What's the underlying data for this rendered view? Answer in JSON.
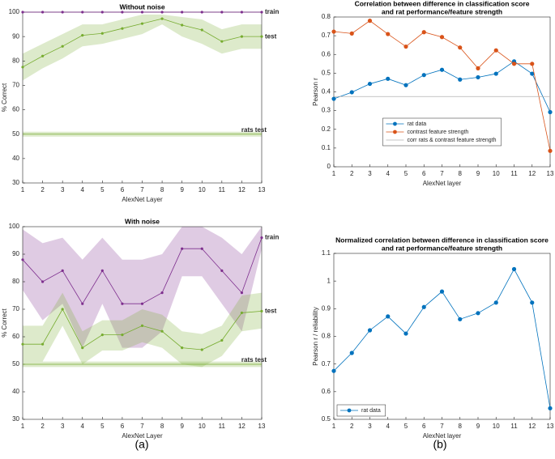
{
  "chart_data": [
    {
      "type": "line",
      "title": [
        "Without noise"
      ],
      "xlabel": "AlexNet Layer",
      "ylabel": "% Correct",
      "x": [
        1,
        2,
        3,
        4,
        5,
        6,
        7,
        8,
        9,
        10,
        11,
        12,
        13
      ],
      "xlim": [
        1,
        13
      ],
      "xticks": [
        1,
        2,
        3,
        4,
        5,
        6,
        7,
        8,
        9,
        10,
        11,
        12,
        13
      ],
      "ylim": [
        30,
        100
      ],
      "yticks": [
        30,
        40,
        50,
        60,
        70,
        80,
        90,
        100
      ],
      "legend": "inline",
      "series": [
        {
          "name": "train",
          "color": "#7e2f8e",
          "marker": true,
          "values": [
            100,
            100,
            100,
            100,
            100,
            100,
            100,
            100,
            100,
            100,
            100,
            100,
            100
          ]
        },
        {
          "name": "test",
          "color": "#77ac30",
          "marker": true,
          "values": [
            77.5,
            82,
            86,
            90.5,
            91.3,
            93.3,
            95.3,
            97.3,
            94.7,
            92.7,
            88,
            90,
            90
          ],
          "lower": [
            72,
            77,
            81,
            86,
            87,
            89,
            91,
            95,
            90,
            87,
            83,
            85,
            85
          ],
          "upper": [
            83,
            87,
            91,
            95,
            95,
            97,
            99,
            99,
            98,
            97,
            93,
            95,
            95
          ]
        },
        {
          "name": "rats test",
          "color": "#77ac30",
          "marker": false,
          "values": [
            50,
            50,
            50,
            50,
            50,
            50,
            50,
            50,
            50,
            50,
            50,
            50,
            50
          ],
          "lower": [
            49,
            49,
            49,
            49,
            49,
            49,
            49,
            49,
            49,
            49,
            49,
            49,
            49
          ],
          "upper": [
            51,
            51,
            51,
            51,
            51,
            51,
            51,
            51,
            51,
            51,
            51,
            51,
            51
          ]
        }
      ]
    },
    {
      "type": "line",
      "title": [
        "With noise"
      ],
      "xlabel": "AlexNet Layer",
      "ylabel": "% Correct",
      "x": [
        1,
        2,
        3,
        4,
        5,
        6,
        7,
        8,
        9,
        10,
        11,
        12,
        13
      ],
      "xlim": [
        1,
        13
      ],
      "xticks": [
        1,
        2,
        3,
        4,
        5,
        6,
        7,
        8,
        9,
        10,
        11,
        12,
        13
      ],
      "ylim": [
        30,
        100
      ],
      "yticks": [
        30,
        40,
        50,
        60,
        70,
        80,
        90,
        100
      ],
      "legend": "inline",
      "series": [
        {
          "name": "train",
          "color": "#7e2f8e",
          "marker": true,
          "values": [
            88,
            80,
            84,
            72,
            84,
            72,
            72,
            76,
            92,
            92,
            84,
            76,
            96
          ],
          "lower": [
            77,
            66,
            72,
            56,
            72,
            56,
            56,
            62,
            82,
            82,
            72,
            62,
            92
          ],
          "upper": [
            99,
            94,
            96,
            88,
            96,
            88,
            88,
            90,
            100,
            100,
            96,
            90,
            100
          ]
        },
        {
          "name": "test",
          "color": "#77ac30",
          "marker": true,
          "values": [
            57.3,
            57.3,
            70,
            56,
            60.7,
            60.7,
            64,
            62,
            56,
            55.3,
            58.7,
            68.7,
            69.3
          ],
          "lower": [
            51,
            51,
            64,
            50,
            55,
            55,
            58,
            56,
            50,
            49,
            53,
            62,
            63
          ],
          "upper": [
            64,
            64,
            76,
            62,
            66,
            66,
            70,
            68,
            62,
            61,
            64,
            75,
            76
          ]
        },
        {
          "name": "rats test",
          "color": "#77ac30",
          "marker": false,
          "values": [
            50,
            50,
            50,
            50,
            50,
            50,
            50,
            50,
            50,
            50,
            50,
            50,
            50
          ],
          "lower": [
            49,
            49,
            49,
            49,
            49,
            49,
            49,
            49,
            49,
            49,
            49,
            49,
            49
          ],
          "upper": [
            51,
            51,
            51,
            51,
            51,
            51,
            51,
            51,
            51,
            51,
            51,
            51,
            51
          ]
        }
      ]
    },
    {
      "type": "line",
      "title": [
        "Correlation between difference in classification score",
        "and rat performance/feature strength"
      ],
      "xlabel": "AlexNet layer",
      "ylabel": "Pearson r",
      "x": [
        1,
        2,
        3,
        4,
        5,
        6,
        7,
        8,
        9,
        10,
        11,
        12,
        13
      ],
      "xlim": [
        1,
        13
      ],
      "xticks": [
        1,
        2,
        3,
        4,
        5,
        6,
        7,
        8,
        9,
        10,
        11,
        12,
        13
      ],
      "ylim": [
        0,
        0.8
      ],
      "yticks": [
        0,
        0.1,
        0.2,
        0.3,
        0.4,
        0.5,
        0.6,
        0.7,
        0.8
      ],
      "legend": "south",
      "series": [
        {
          "name": "rat data",
          "color": "#0072bd",
          "marker": true,
          "values": [
            0.363,
            0.398,
            0.443,
            0.47,
            0.436,
            0.49,
            0.518,
            0.466,
            0.478,
            0.497,
            0.563,
            0.497,
            0.292
          ]
        },
        {
          "name": "contrast feature strength",
          "color": "#d95319",
          "marker": true,
          "values": [
            0.722,
            0.712,
            0.78,
            0.709,
            0.642,
            0.719,
            0.693,
            0.637,
            0.526,
            0.622,
            0.55,
            0.55,
            0.085
          ]
        },
        {
          "name": "corr rats & contrast feature strength",
          "color": "#b0b0b0",
          "marker": false,
          "values": [
            0.375,
            0.375,
            0.375,
            0.375,
            0.375,
            0.375,
            0.375,
            0.375,
            0.375,
            0.375,
            0.375,
            0.375,
            0.375
          ]
        }
      ]
    },
    {
      "type": "line",
      "title": [
        "Normalized correlation between difference in classification score",
        "and rat performance/feature strength"
      ],
      "xlabel": "AlexNet layer",
      "ylabel": "Pearson r / reliability",
      "x": [
        1,
        2,
        3,
        4,
        5,
        6,
        7,
        8,
        9,
        10,
        11,
        12,
        13
      ],
      "xlim": [
        1,
        13
      ],
      "xticks": [
        1,
        2,
        3,
        4,
        5,
        6,
        7,
        8,
        9,
        10,
        11,
        12,
        13
      ],
      "ylim": [
        0.5,
        1.1
      ],
      "yticks": [
        0.5,
        0.6,
        0.7,
        0.8,
        0.9,
        1,
        1.1
      ],
      "legend": "southwest",
      "series": [
        {
          "name": "rat data",
          "color": "#0072bd",
          "marker": true,
          "values": [
            0.675,
            0.74,
            0.822,
            0.872,
            0.81,
            0.906,
            0.962,
            0.862,
            0.884,
            0.922,
            1.043,
            0.922,
            0.54
          ]
        }
      ]
    }
  ],
  "captions": [
    "(a)",
    "(b)"
  ]
}
